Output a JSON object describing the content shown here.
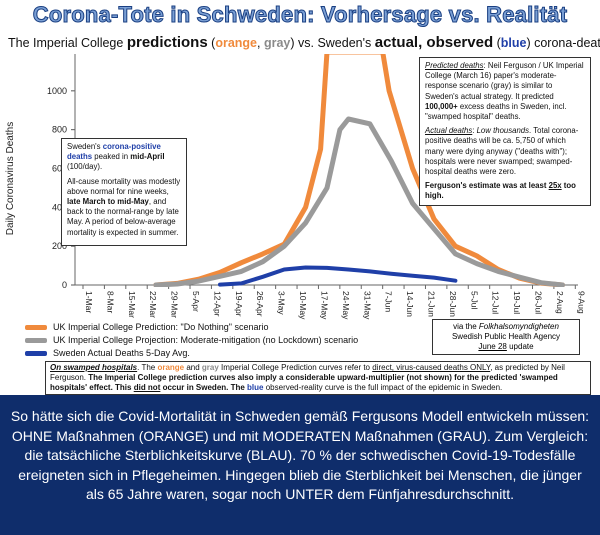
{
  "title": "Corona-Tote in Schweden: Vorhersage vs. Realität",
  "subtitle": {
    "p1": "The Imperial College ",
    "p2": "predictions",
    "p3": " (",
    "p4": "orange",
    "p5": ", ",
    "p6": "gray",
    "p7": ")  vs. Sweden's ",
    "p8": "actual, observed",
    "p9": " (",
    "p10": "blue",
    "p11": ") corona-deaths"
  },
  "chart_data": {
    "type": "line",
    "ylabel": "Daily Coronavirus Deaths",
    "ylim": [
      0,
      1200
    ],
    "yticks": [
      0,
      200,
      400,
      600,
      800,
      1000
    ],
    "categories": [
      "1-Mar",
      "8-Mar",
      "15-Mar",
      "22-Mar",
      "29-Mar",
      "5-Apr",
      "12-Apr",
      "19-Apr",
      "26-Apr",
      "3-May",
      "10-May",
      "17-May",
      "24-May",
      "31-May",
      "7-Jun",
      "14-Jun",
      "21-Jun",
      "28-Jun",
      "5-Jul",
      "12-Jul",
      "19-Jul",
      "26-Jul",
      "2-Aug",
      "9-Aug"
    ],
    "series": [
      {
        "name": "UK Imperial College Prediction: \"Do Nothing\" scenario",
        "color": "#f08a3c",
        "x": [
          3.4,
          4.4,
          5.4,
          6.4,
          7.4,
          8.4,
          9.4,
          10.4,
          11.1,
          11.4,
          14.0,
          14.3,
          15.4,
          16.4,
          17.4,
          18.4,
          19.4,
          20.4,
          21.4,
          22.4
        ],
        "y": [
          0,
          8,
          30,
          65,
          115,
          160,
          210,
          400,
          700,
          1200,
          1200,
          1000,
          600,
          340,
          200,
          150,
          80,
          35,
          10,
          0
        ]
      },
      {
        "name": "UK Imperial College Projection: Moderate-mitigation (no Lockdown) scenario",
        "color": "#9a9a9a",
        "x": [
          3.4,
          4.4,
          5.4,
          6.4,
          7.4,
          8.4,
          9.4,
          10.4,
          11.4,
          12.0,
          12.4,
          13.4,
          14.4,
          15.4,
          16.4,
          17.4,
          18.4,
          19.4,
          20.4,
          21.4,
          22.4
        ],
        "y": [
          0,
          5,
          20,
          45,
          70,
          120,
          200,
          320,
          500,
          800,
          855,
          830,
          640,
          420,
          290,
          160,
          110,
          70,
          40,
          12,
          0
        ]
      },
      {
        "name": "Sweden Actual Deaths 5-Day Avg.",
        "color": "#1f3fa8",
        "x": [
          6.4,
          7.4,
          8.4,
          9.4,
          10.4,
          11.4,
          12.4,
          13.4,
          14.4,
          15.4,
          16.4,
          17.4
        ],
        "y": [
          2,
          8,
          42,
          80,
          90,
          88,
          80,
          70,
          58,
          48,
          38,
          22
        ]
      }
    ]
  },
  "note_left": {
    "p1a": "Sweden's ",
    "p1b": "corona-positive deaths",
    "p1c": " peaked in ",
    "p1d": "mid-April",
    "p1e": " (100/day).",
    "p2a": "All-cause mortality was modestly above normal for nine weeks, ",
    "p2b": "late March to mid-May",
    "p2c": ", and back to the normal-range by late May. A period of below-average mortality is expected in summer."
  },
  "note_right": {
    "p1a": "Predicted deaths",
    "p1b": ": Neil Ferguson / UK Imperial College (March 16) paper's moderate-response scenario (gray) is similar to Sweden's actual strategy. It predicted ",
    "p1c": "100,000+",
    "p1d": " excess deaths in Sweden, incl. \"swamped hospital\" deaths.",
    "p2a": "Actual deaths",
    "p2b": ": ",
    "p2c": "Low thousands",
    "p2d": ". Total corona-positive deaths will be ca. 5,750 of which many were dying anyway (\"deaths with\"); hospitals were never swamped; swamped-hospital deaths were zero.",
    "p3a": "Ferguson's estimate was at least ",
    "p3b": "25x",
    "p3c": " too high."
  },
  "via_box": {
    "l1": "via the ",
    "l1b": "Folkhalsomyndigheten",
    "l2": "Swedish Public Health Agency",
    "l3": "June 28",
    "l3b": " update"
  },
  "swamp_note": {
    "a": "On swamped hospitals",
    "b": ". The ",
    "c": "orange",
    "d": " and ",
    "e": "gray",
    "f": " Imperial College Prediction curves refer to ",
    "g": "direct, virus-caused deaths ONLY",
    "h": ", as predicted by Neil Ferguson. ",
    "i": "The Imperial College prediction curves also imply a considerable upward-multiplier (not shown) for the predicted 'swamped hospitals' effect. This ",
    "j": "did not",
    "k": " occur in Sweden. The ",
    "l": "blue",
    "m": " observed-reality curve is the full impact of the epidemic in Sweden."
  },
  "caption": "So hätte sich die Covid-Mortalität in Schweden gemäß Fergusons Modell entwickeln müssen: OHNE Maßnahmen (ORANGE) und mit MODERATEN Maßnahmen (GRAU). Zum Vergleich: die tatsächliche Sterblichkeitskurve (BLAU). 70 % der schwedischen Covid-19-Todesfälle ereigneten sich in Pflegeheimen. Hingegen blieb die Sterblichkeit bei Menschen, die jünger als 65 Jahre waren, sogar noch UNTER dem Fünfjahresdurchschnitt.",
  "colors": {
    "orange": "#f08a3c",
    "gray": "#9a9a9a",
    "blue": "#1f3fa8",
    "background": "#0f2d6b"
  }
}
